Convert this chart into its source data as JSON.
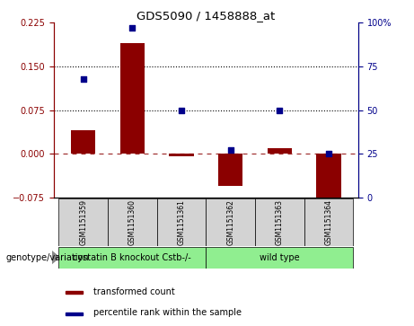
{
  "title": "GDS5090 / 1458888_at",
  "samples": [
    "GSM1151359",
    "GSM1151360",
    "GSM1151361",
    "GSM1151362",
    "GSM1151363",
    "GSM1151364"
  ],
  "transformed_count": [
    0.04,
    0.19,
    -0.005,
    -0.055,
    0.01,
    -0.088
  ],
  "percentile_rank": [
    68,
    97,
    50,
    27,
    50,
    25
  ],
  "bar_color": "#8B0000",
  "dot_color": "#00008B",
  "left_ylim": [
    -0.075,
    0.225
  ],
  "right_ylim": [
    0,
    100
  ],
  "left_yticks": [
    -0.075,
    0,
    0.075,
    0.15,
    0.225
  ],
  "right_yticks": [
    0,
    25,
    50,
    75,
    100
  ],
  "hline_y": [
    0.075,
    0.15
  ],
  "zero_line_y": 0,
  "groups": [
    {
      "label": "cystatin B knockout Cstb-/-",
      "indices": [
        0,
        1,
        2
      ],
      "color": "#90EE90"
    },
    {
      "label": "wild type",
      "indices": [
        3,
        4,
        5
      ],
      "color": "#90EE90"
    }
  ],
  "group_label": "genotype/variation",
  "legend_bar_label": "transformed count",
  "legend_dot_label": "percentile rank within the sample",
  "bar_width": 0.5
}
